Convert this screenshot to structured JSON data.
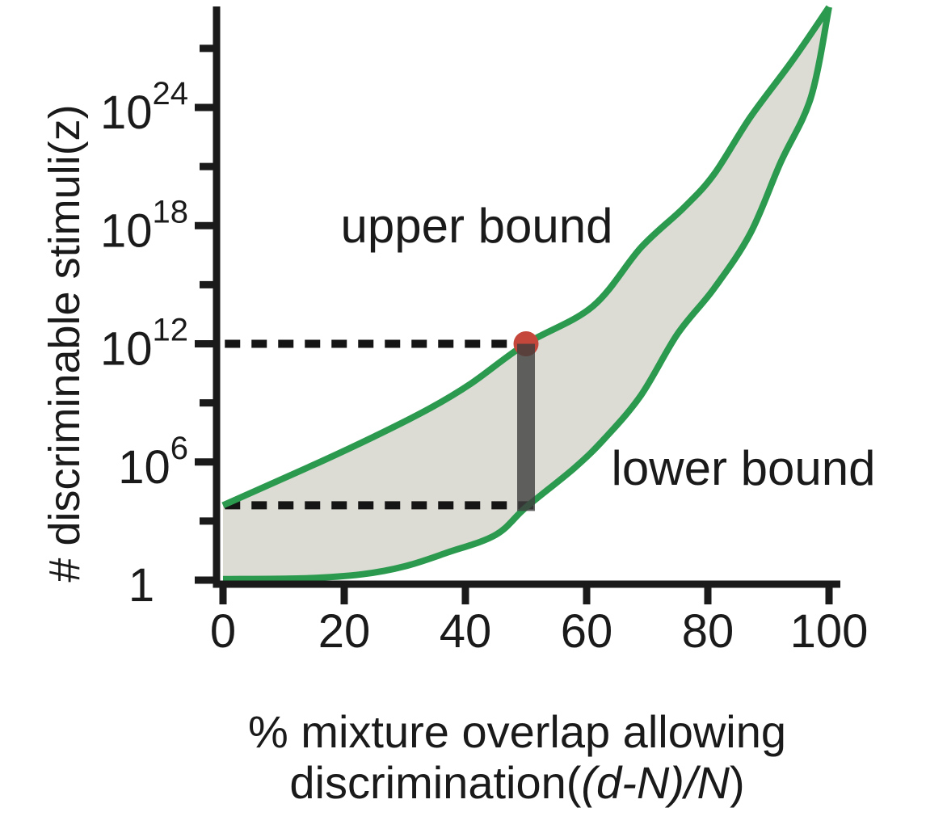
{
  "chart_data": {
    "type": "area",
    "title": "",
    "ylabel": "# discriminable stimuli(z)",
    "xlabel_line1": "% mixture overlap allowing",
    "xlabel_line2": {
      "pre": "discrimination(",
      "italic": "(d-N)/N",
      "post": ")"
    },
    "xlabel_combined": "% mixture overlap allowing discrimination((d-N)/N)",
    "x_axis": {
      "min": 0,
      "max": 100,
      "tick_values": [
        0,
        20,
        40,
        60,
        80,
        100
      ],
      "tick_labels": [
        "0",
        "20",
        "40",
        "60",
        "80",
        "100"
      ]
    },
    "y_axis": {
      "scale": "log10",
      "bottom_label": "1",
      "major_ticks": [
        {
          "base": "10",
          "exp": "24",
          "log10": 24
        },
        {
          "base": "10",
          "exp": "18",
          "log10": 18
        },
        {
          "base": "10",
          "exp": "12",
          "log10": 12
        },
        {
          "base": "10",
          "exp": "6",
          "log10": 6
        },
        {
          "base": "1",
          "exp": "",
          "log10": 0
        }
      ],
      "minor_tick_log10": [
        27,
        21,
        15,
        9,
        3
      ]
    },
    "series": [
      {
        "name": "upper bound",
        "points_x_percent_log10y": [
          [
            0,
            3.8
          ],
          [
            16,
            6.0
          ],
          [
            25,
            7.3
          ],
          [
            34,
            8.7
          ],
          [
            41,
            10.0
          ],
          [
            50,
            12.0
          ],
          [
            61,
            13.9
          ],
          [
            69,
            16.9
          ],
          [
            76,
            18.9
          ],
          [
            81,
            20.6
          ],
          [
            87,
            23.5
          ],
          [
            94,
            26.4
          ],
          [
            100,
            29.1
          ]
        ]
      },
      {
        "name": "lower bound",
        "points_x_percent_log10y": [
          [
            0,
            0.05
          ],
          [
            14,
            0.1
          ],
          [
            23,
            0.3
          ],
          [
            30,
            0.7
          ],
          [
            37,
            1.4
          ],
          [
            45,
            2.3
          ],
          [
            50,
            3.7
          ],
          [
            58,
            5.7
          ],
          [
            63,
            7.2
          ],
          [
            69,
            9.4
          ],
          [
            75,
            12.5
          ],
          [
            81,
            14.8
          ],
          [
            87,
            17.6
          ],
          [
            92,
            21.2
          ],
          [
            97,
            24.5
          ],
          [
            100,
            29.1
          ]
        ]
      }
    ],
    "annotations": {
      "upper_label": "upper bound",
      "lower_label": "lower bound",
      "marker": {
        "x_percent": 50,
        "upper_log10": 12,
        "lower_log10": 3.8
      }
    },
    "colors": {
      "curve_green": "#2b9a4f",
      "band_fill": "#dcdbd4",
      "marker_dot_red": "#c5463a",
      "marker_bar_gray": "#3f3f3f",
      "dashed_line": "#151515",
      "axis_black": "#1a1a1a"
    }
  }
}
